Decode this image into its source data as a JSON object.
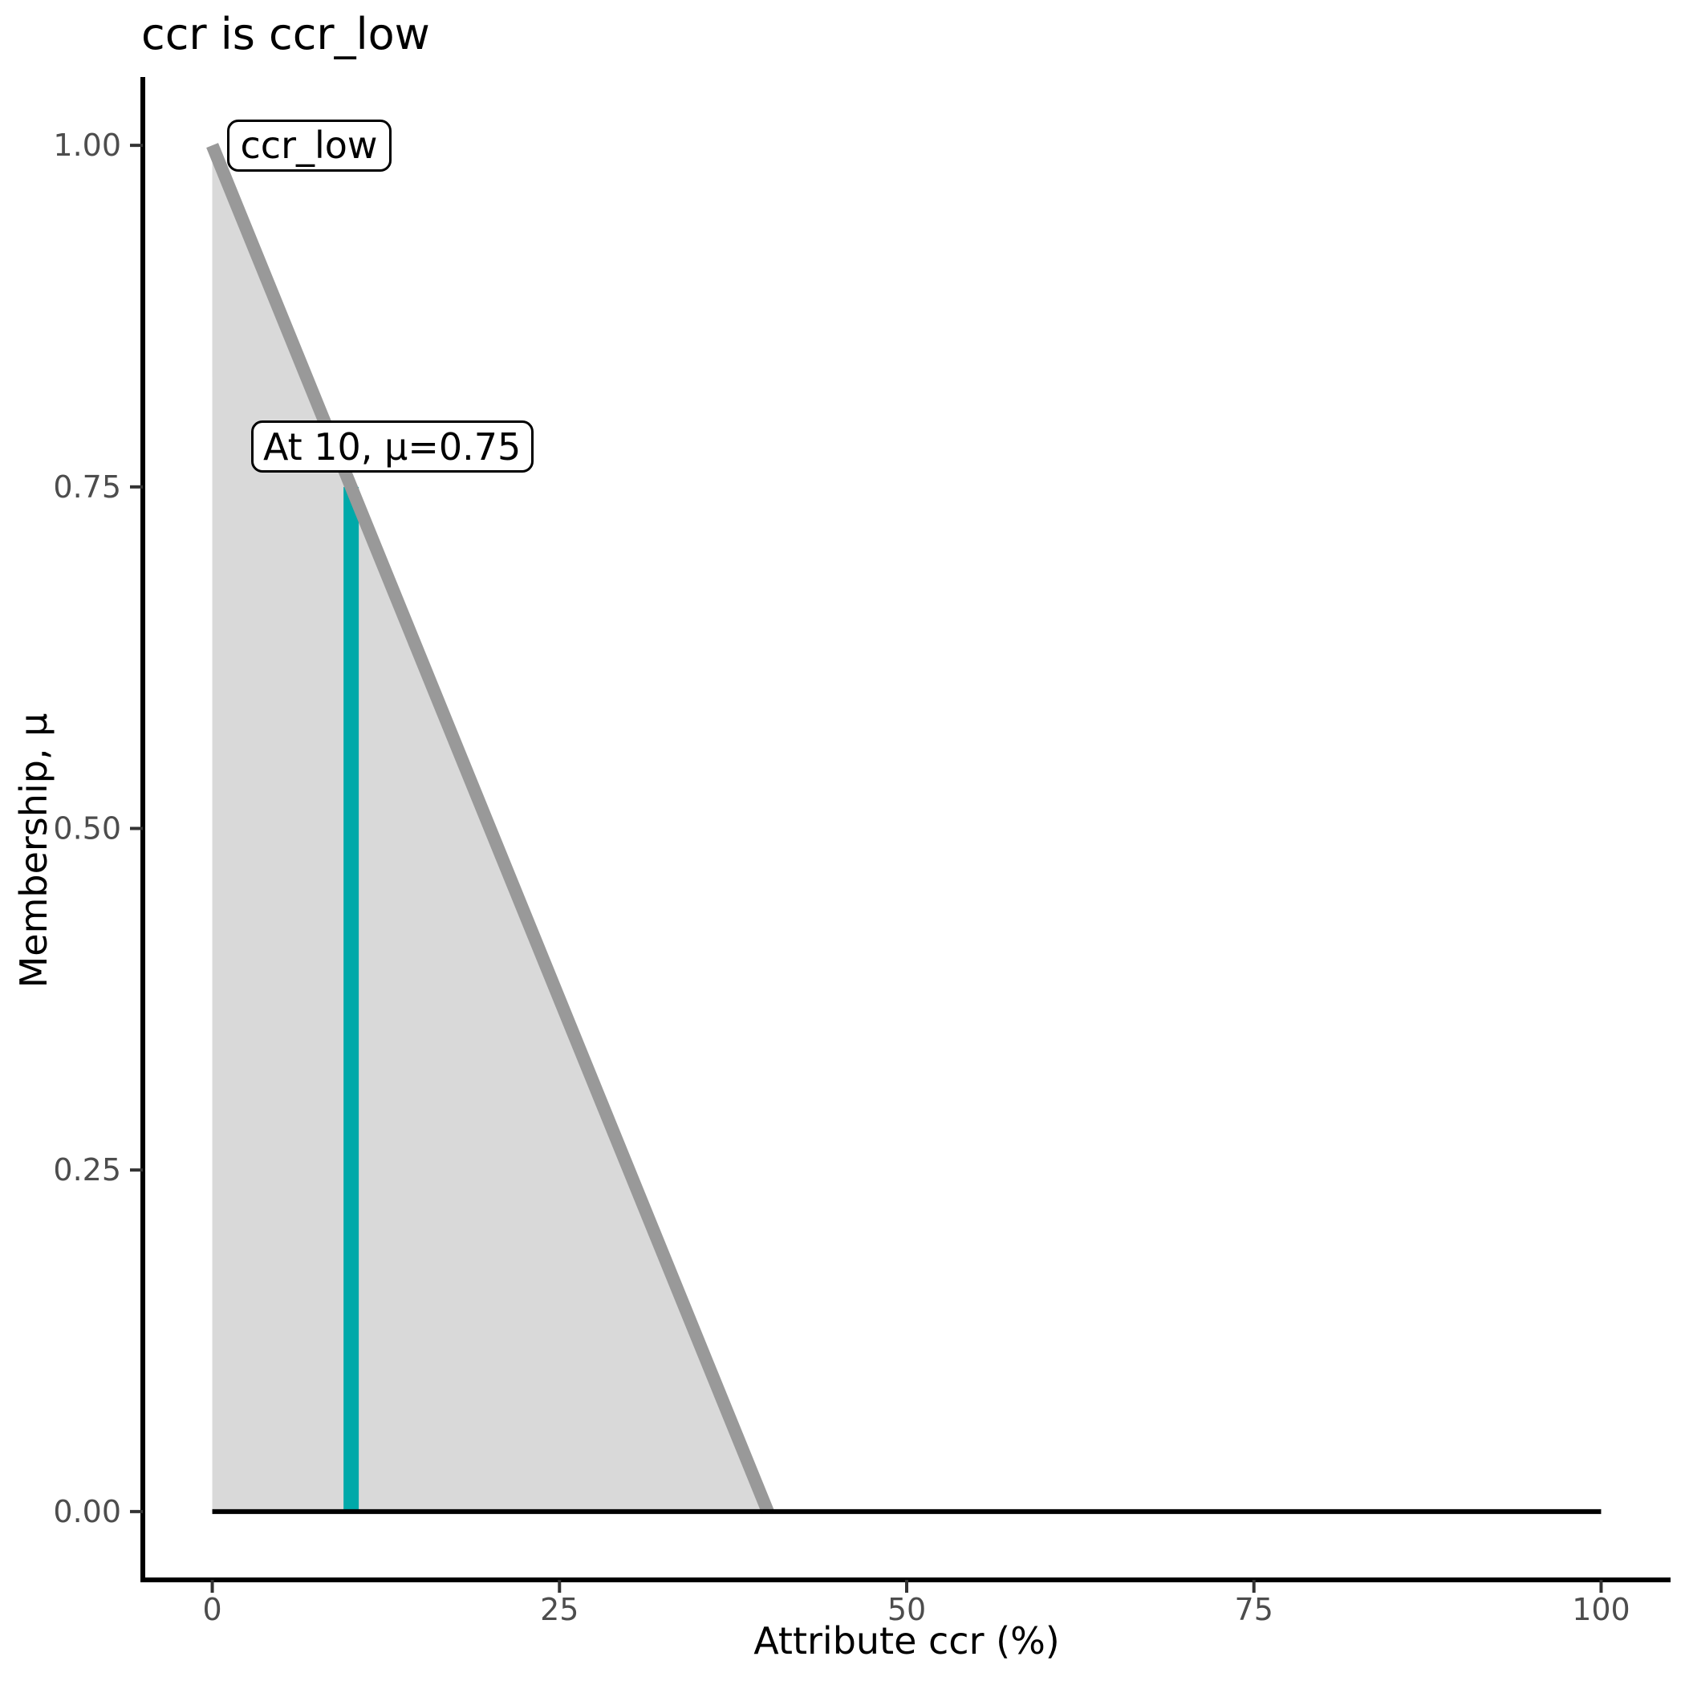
{
  "chart_data": {
    "type": "area",
    "title": "ccr is ccr_low",
    "xlabel": "Attribute ccr (%)",
    "ylabel": "Membership, μ",
    "xlim": [
      0,
      100
    ],
    "ylim": [
      0,
      1
    ],
    "grid": "off",
    "legend": "none",
    "x_ticks": [
      {
        "value": 0,
        "label": "0"
      },
      {
        "value": 25,
        "label": "25"
      },
      {
        "value": 50,
        "label": "50"
      },
      {
        "value": 75,
        "label": "75"
      },
      {
        "value": 100,
        "label": "100"
      }
    ],
    "y_ticks": [
      {
        "value": 0.0,
        "label": "0.00"
      },
      {
        "value": 0.25,
        "label": "0.25"
      },
      {
        "value": 0.5,
        "label": "0.50"
      },
      {
        "value": 0.75,
        "label": "0.75"
      },
      {
        "value": 1.0,
        "label": "1.00"
      }
    ],
    "series": [
      {
        "name": "ccr_low",
        "kind": "membership-function",
        "points": [
          {
            "x": 0,
            "mu": 1.0
          },
          {
            "x": 40,
            "mu": 0.0
          }
        ],
        "fill_color": "#D9D9D9",
        "line_color": "#999999"
      },
      {
        "name": "baseline",
        "kind": "line",
        "points": [
          {
            "x": 0,
            "mu": 0.0
          },
          {
            "x": 100,
            "mu": 0.0
          }
        ],
        "line_color": "#000000"
      },
      {
        "name": "highlight",
        "kind": "vline",
        "x": 10,
        "mu_top": 0.75,
        "line_color": "#00A9A9"
      }
    ],
    "annotations": {
      "mf_label": {
        "text": "ccr_low",
        "anchor_x": 0,
        "anchor_mu": 1.0
      },
      "point_label": {
        "text": "At 10, μ=0.75",
        "anchor_x": 10,
        "anchor_mu": 0.75
      }
    },
    "colors": {
      "axis": "#000000",
      "tick": "#333333",
      "tick_label": "#4D4D4D",
      "text": "#000000"
    }
  }
}
